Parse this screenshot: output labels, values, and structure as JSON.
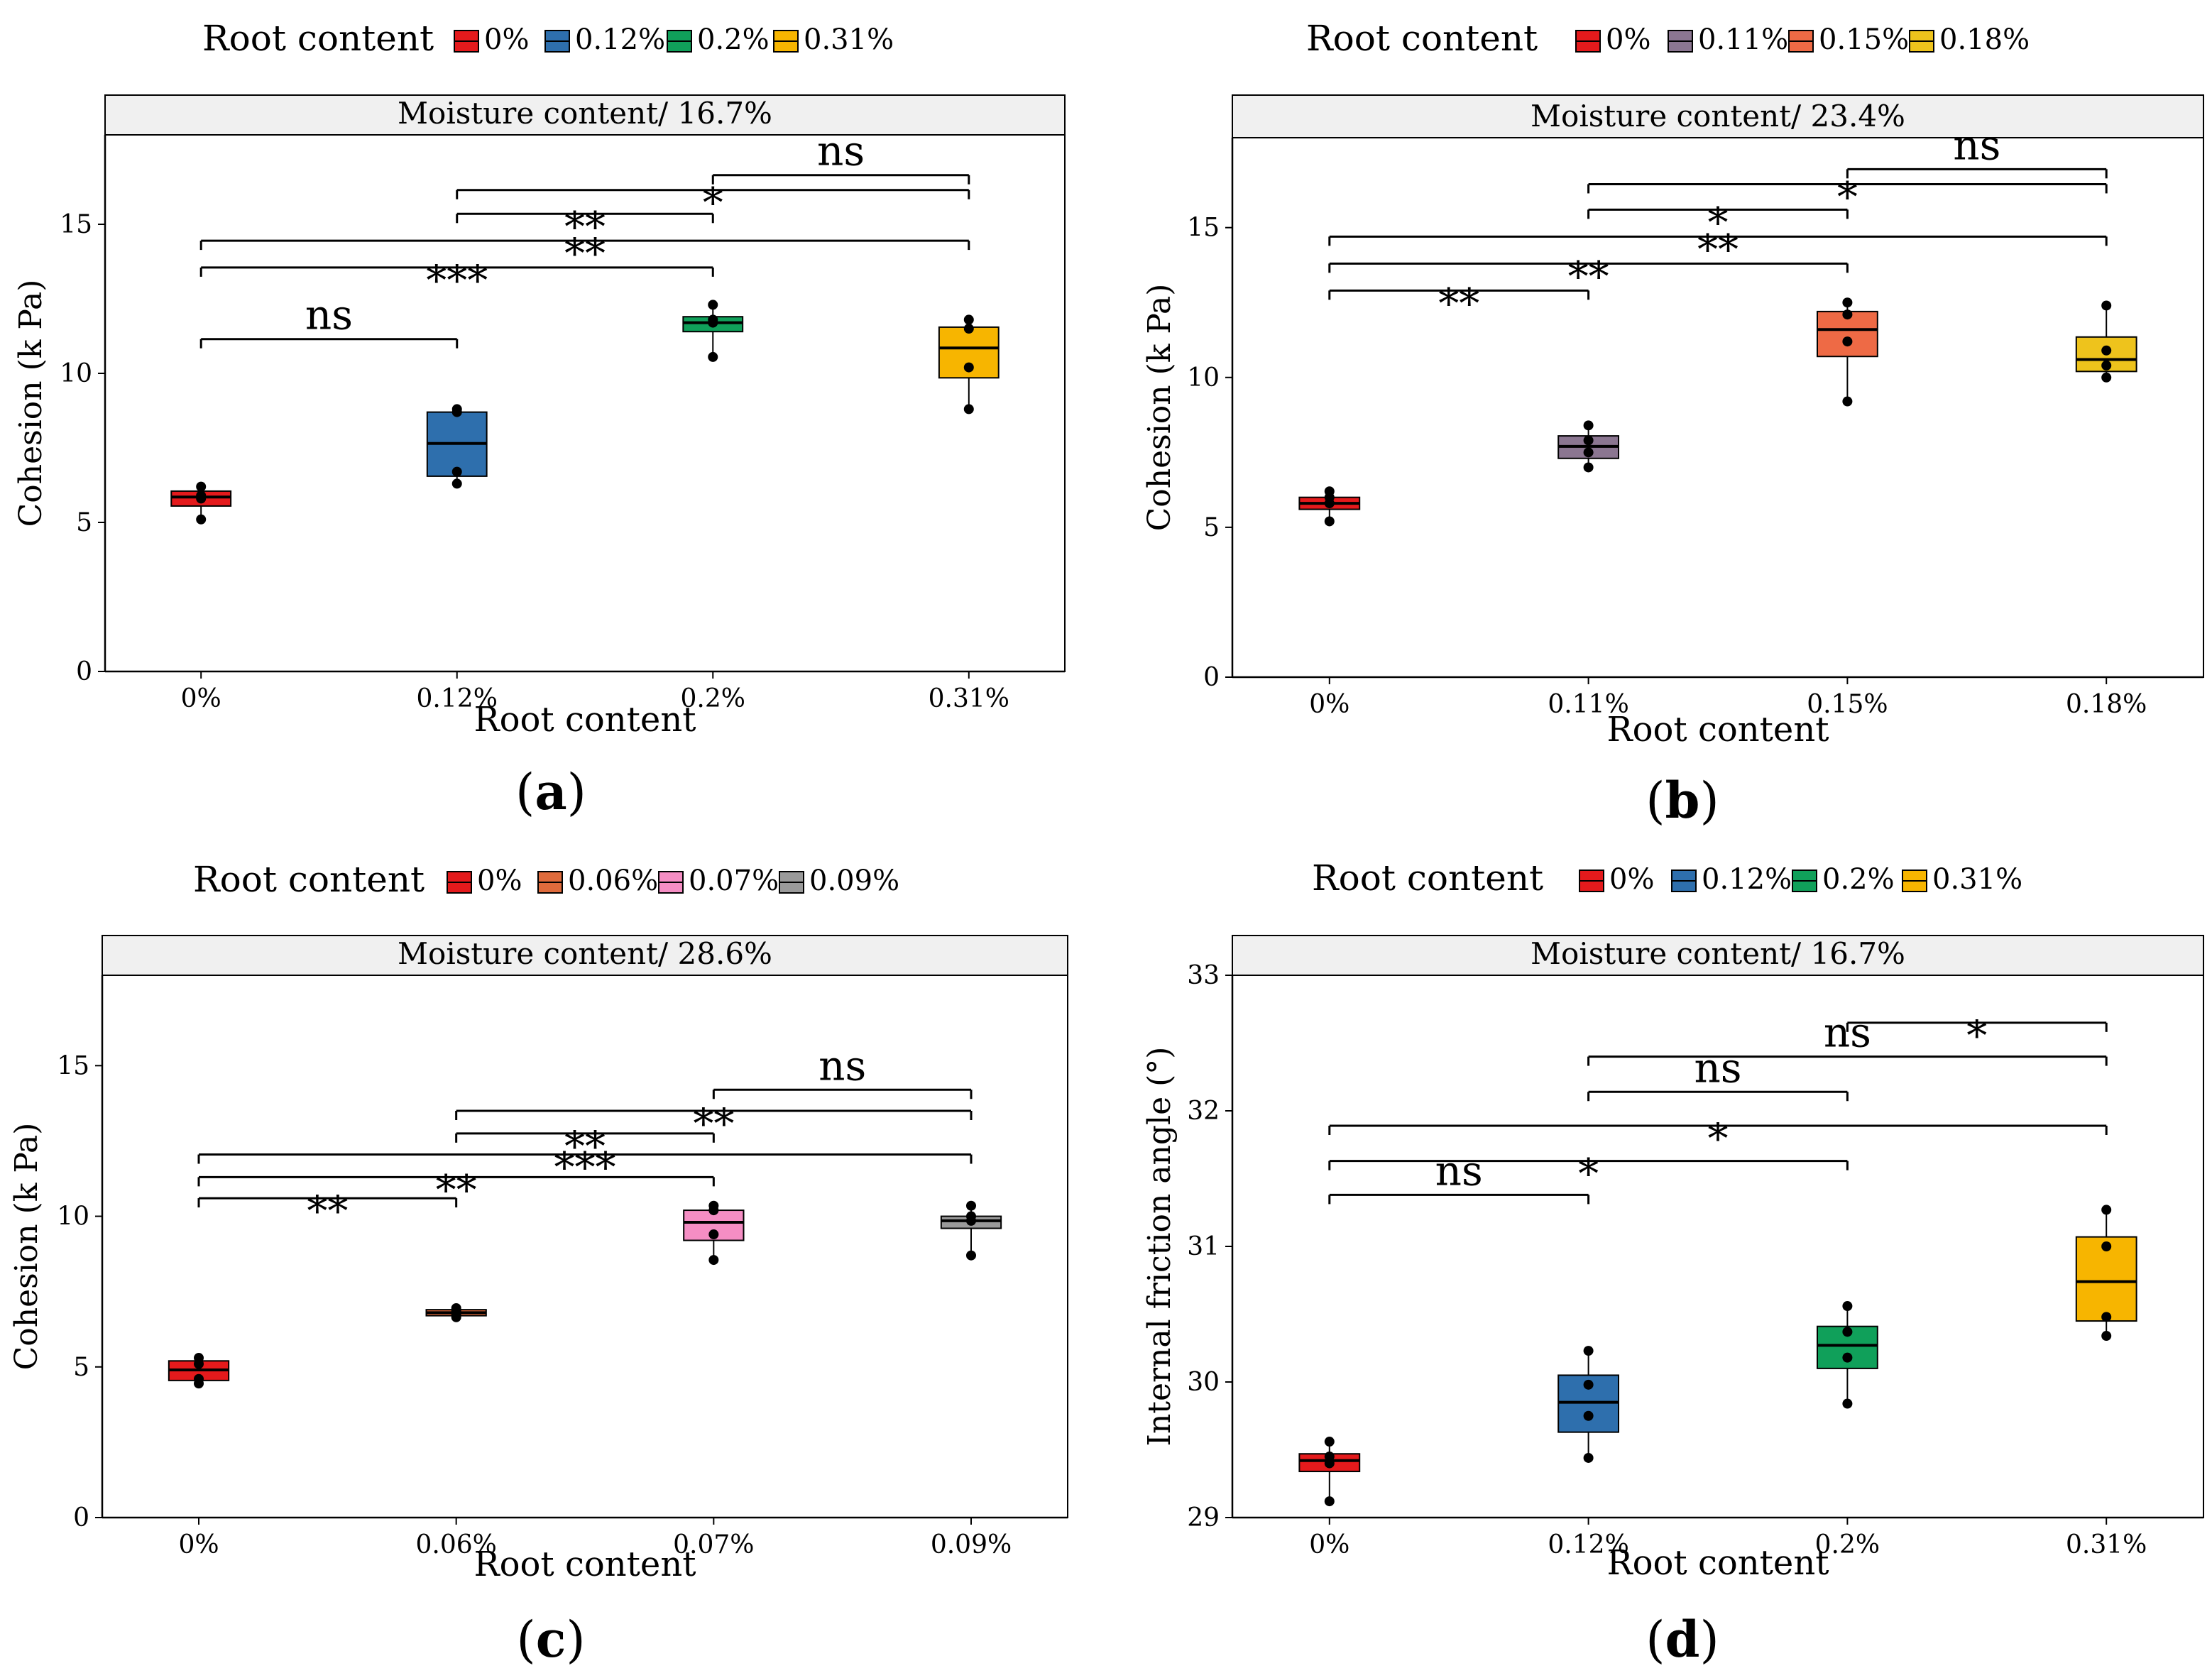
{
  "legend_title": "Root content",
  "chart_data": [
    {
      "panel_label": "a",
      "type": "box",
      "strip_title": "Moisture content/ 16.7%",
      "xlabel": "Root content",
      "ylabel": "Cohesion (k Pa)",
      "ylim": [
        0,
        18
      ],
      "yticks": [
        0,
        5,
        10,
        15
      ],
      "categories": [
        "0%",
        "0.12%",
        "0.2%",
        "0.31%"
      ],
      "colors": [
        "#e41a1c",
        "#2e6fad",
        "#10a05a",
        "#f7b500"
      ],
      "boxes": [
        {
          "q1": 5.55,
          "median": 5.85,
          "q3": 6.05,
          "whisker_low": 5.1,
          "whisker_high": 6.2,
          "points": [
            5.1,
            5.8,
            5.9,
            6.2
          ]
        },
        {
          "q1": 6.55,
          "median": 7.65,
          "q3": 8.7,
          "whisker_low": 6.3,
          "whisker_high": 8.8,
          "points": [
            6.3,
            6.7,
            8.7,
            8.8
          ]
        },
        {
          "q1": 11.4,
          "median": 11.7,
          "q3": 11.9,
          "whisker_low": 10.55,
          "whisker_high": 12.3,
          "points": [
            10.55,
            11.7,
            11.8,
            12.3
          ]
        },
        {
          "q1": 9.85,
          "median": 10.85,
          "q3": 11.55,
          "whisker_low": 8.8,
          "whisker_high": 11.8,
          "points": [
            8.8,
            10.2,
            11.5,
            11.8
          ]
        }
      ],
      "comparisons": [
        {
          "from": 0,
          "to": 1,
          "y": 11.15,
          "label": "ns"
        },
        {
          "from": 0,
          "to": 2,
          "y": 13.55,
          "label": "***"
        },
        {
          "from": 0,
          "to": 3,
          "y": 14.45,
          "label": "**"
        },
        {
          "from": 1,
          "to": 2,
          "y": 15.35,
          "label": "**"
        },
        {
          "from": 1,
          "to": 3,
          "y": 16.15,
          "label": "*"
        },
        {
          "from": 2,
          "to": 3,
          "y": 16.65,
          "label": "ns"
        }
      ]
    },
    {
      "panel_label": "b",
      "type": "box",
      "strip_title": "Moisture content/ 23.4%",
      "xlabel": "Root content",
      "ylabel": "Cohesion (k Pa)",
      "ylim": [
        0,
        18
      ],
      "yticks": [
        0,
        5,
        10,
        15
      ],
      "categories": [
        "0%",
        "0.11%",
        "0.15%",
        "0.18%"
      ],
      "colors": [
        "#e41a1c",
        "#8b7691",
        "#ee6a45",
        "#eec31c"
      ],
      "boxes": [
        {
          "q1": 5.6,
          "median": 5.8,
          "q3": 6.0,
          "whisker_low": 5.2,
          "whisker_high": 6.2,
          "points": [
            5.2,
            5.8,
            6.0,
            6.2
          ]
        },
        {
          "q1": 7.3,
          "median": 7.7,
          "q3": 8.05,
          "whisker_low": 7.0,
          "whisker_high": 8.4,
          "points": [
            7.0,
            7.5,
            7.9,
            8.4
          ]
        },
        {
          "q1": 10.7,
          "median": 11.6,
          "q3": 12.2,
          "whisker_low": 9.2,
          "whisker_high": 12.5,
          "points": [
            9.2,
            11.2,
            12.1,
            12.5
          ]
        },
        {
          "q1": 10.2,
          "median": 10.6,
          "q3": 11.35,
          "whisker_low": 10.0,
          "whisker_high": 12.4,
          "points": [
            10.0,
            10.4,
            10.9,
            12.4
          ]
        }
      ],
      "comparisons": [
        {
          "from": 0,
          "to": 1,
          "y": 12.9,
          "label": "**"
        },
        {
          "from": 0,
          "to": 2,
          "y": 13.8,
          "label": "**"
        },
        {
          "from": 0,
          "to": 3,
          "y": 14.7,
          "label": "**"
        },
        {
          "from": 1,
          "to": 2,
          "y": 15.6,
          "label": "*"
        },
        {
          "from": 1,
          "to": 3,
          "y": 16.45,
          "label": "*"
        },
        {
          "from": 2,
          "to": 3,
          "y": 16.95,
          "label": "ns"
        }
      ]
    },
    {
      "panel_label": "c",
      "type": "box",
      "strip_title": "Moisture content/ 28.6%",
      "xlabel": "Root content",
      "ylabel": "Cohesion (k Pa)",
      "ylim": [
        0,
        18
      ],
      "yticks": [
        0,
        5,
        10,
        15
      ],
      "categories": [
        "0%",
        "0.06%",
        "0.07%",
        "0.09%"
      ],
      "colors": [
        "#e41a1c",
        "#df6b3c",
        "#f58ec4",
        "#9a9a9a"
      ],
      "boxes": [
        {
          "q1": 4.55,
          "median": 4.9,
          "q3": 5.2,
          "whisker_low": 4.45,
          "whisker_high": 5.3,
          "points": [
            4.45,
            4.6,
            5.1,
            5.3
          ]
        },
        {
          "q1": 6.7,
          "median": 6.8,
          "q3": 6.9,
          "whisker_low": 6.65,
          "whisker_high": 6.95,
          "points": [
            6.65,
            6.75,
            6.85,
            6.95
          ]
        },
        {
          "q1": 9.2,
          "median": 9.8,
          "q3": 10.2,
          "whisker_low": 8.55,
          "whisker_high": 10.35,
          "points": [
            8.55,
            9.4,
            10.2,
            10.35
          ]
        },
        {
          "q1": 9.6,
          "median": 9.85,
          "q3": 10.0,
          "whisker_low": 8.7,
          "whisker_high": 10.35,
          "points": [
            8.7,
            9.85,
            10.0,
            10.35
          ]
        }
      ],
      "comparisons": [
        {
          "from": 0,
          "to": 1,
          "y": 10.6,
          "label": "**"
        },
        {
          "from": 0,
          "to": 2,
          "y": 11.3,
          "label": "**"
        },
        {
          "from": 0,
          "to": 3,
          "y": 12.05,
          "label": "***"
        },
        {
          "from": 1,
          "to": 2,
          "y": 12.75,
          "label": "**"
        },
        {
          "from": 1,
          "to": 3,
          "y": 13.5,
          "label": "**"
        },
        {
          "from": 2,
          "to": 3,
          "y": 14.2,
          "label": "ns"
        }
      ]
    },
    {
      "panel_label": "d",
      "type": "box",
      "strip_title": "Moisture content/ 16.7%",
      "xlabel": "Root content",
      "ylabel": "Internal friction angle (°)",
      "ylim": [
        29,
        33
      ],
      "yticks": [
        29,
        30,
        31,
        32,
        33
      ],
      "categories": [
        "0%",
        "0.12%",
        "0.2%",
        "0.31%"
      ],
      "colors": [
        "#e41a1c",
        "#2e6fad",
        "#10a05a",
        "#f7b500"
      ],
      "boxes": [
        {
          "q1": 29.34,
          "median": 29.42,
          "q3": 29.47,
          "whisker_low": 29.12,
          "whisker_high": 29.56,
          "points": [
            29.12,
            29.4,
            29.45,
            29.56
          ]
        },
        {
          "q1": 29.63,
          "median": 29.85,
          "q3": 30.05,
          "whisker_low": 29.44,
          "whisker_high": 30.23,
          "points": [
            29.44,
            29.75,
            29.98,
            30.23
          ]
        },
        {
          "q1": 30.1,
          "median": 30.27,
          "q3": 30.41,
          "whisker_low": 29.84,
          "whisker_high": 30.56,
          "points": [
            29.84,
            30.18,
            30.37,
            30.56
          ]
        },
        {
          "q1": 30.45,
          "median": 30.74,
          "q3": 31.07,
          "whisker_low": 30.34,
          "whisker_high": 31.27,
          "points": [
            30.34,
            30.48,
            31.0,
            31.27
          ]
        }
      ],
      "comparisons": [
        {
          "from": 0,
          "to": 1,
          "y": 31.38,
          "label": "ns"
        },
        {
          "from": 0,
          "to": 2,
          "y": 31.63,
          "label": "*"
        },
        {
          "from": 0,
          "to": 3,
          "y": 31.89,
          "label": "*"
        },
        {
          "from": 1,
          "to": 2,
          "y": 32.14,
          "label": "ns"
        },
        {
          "from": 1,
          "to": 3,
          "y": 32.4,
          "label": "ns"
        },
        {
          "from": 2,
          "to": 3,
          "y": 32.65,
          "label": "*"
        }
      ]
    }
  ]
}
